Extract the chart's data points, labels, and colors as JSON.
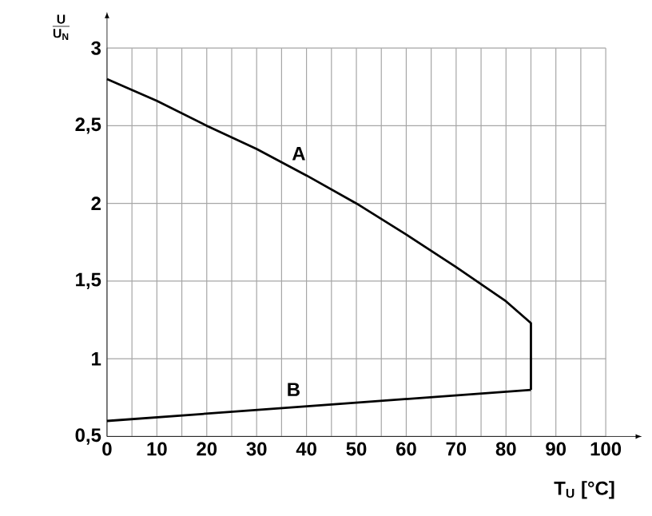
{
  "chart_data": {
    "type": "line",
    "xlabel": "T$_{U}$ [°C]",
    "ylabel": "\\frac{\\mathbf{U}}{\\mathbf{U}_{\\mathbf{N}}}",
    "xlim": [
      0,
      100
    ],
    "ylim": [
      0.5,
      3
    ],
    "xticks": [
      0,
      {
        "value": 5,
        "label": null
      },
      10,
      {
        "value": 15,
        "label": null
      },
      20,
      {
        "value": 25,
        "label": null
      },
      30,
      {
        "value": 35,
        "label": null
      },
      40,
      {
        "value": 45,
        "label": null
      },
      50,
      {
        "value": 55,
        "label": null
      },
      60,
      {
        "value": 65,
        "label": null
      },
      70,
      {
        "value": 75,
        "label": null
      },
      80,
      {
        "value": 85,
        "label": null
      },
      90,
      {
        "value": 95,
        "label": null
      },
      100
    ],
    "yticks": [
      {
        "value": 0.5,
        "label": "0,5"
      },
      1,
      {
        "value": 1.5,
        "label": "1,5"
      },
      2,
      {
        "value": 2.5,
        "label": "2,5"
      },
      3
    ],
    "grid": true,
    "line_style": "solid",
    "series": [
      {
        "name": "A",
        "color": "#000000",
        "x": [
          0,
          10,
          20,
          30,
          40,
          50,
          60,
          70,
          80,
          85,
          85
        ],
        "values": [
          2.8,
          2.66,
          2.5,
          2.35,
          2.18,
          2.0,
          1.8,
          1.59,
          1.37,
          1.23,
          0.8
        ]
      },
      {
        "name": "B",
        "color": "#000000",
        "x": [
          0,
          85
        ],
        "values": [
          0.6,
          0.8
        ]
      }
    ]
  }
}
